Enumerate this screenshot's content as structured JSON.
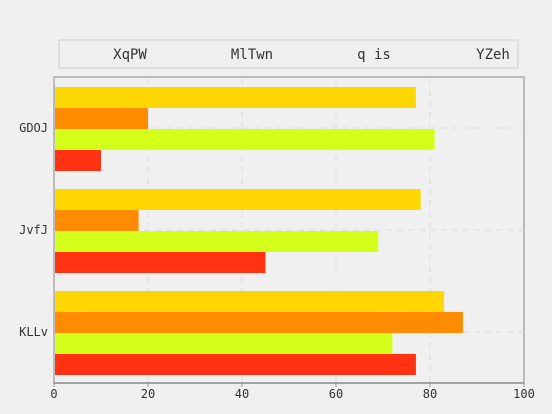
{
  "chart_data": {
    "type": "bar",
    "orientation": "horizontal",
    "categories": [
      "GDOJ",
      "JvfJ",
      "KLLv"
    ],
    "series": [
      {
        "name": "XqPW",
        "color": "#ffd700",
        "values": [
          77,
          78,
          83
        ]
      },
      {
        "name": "MlTwn",
        "color": "#ff8c00",
        "values": [
          20,
          18,
          87
        ]
      },
      {
        "name": "q is",
        "color": "#d4ff1a",
        "values": [
          81,
          69,
          72
        ]
      },
      {
        "name": "YZeh",
        "color": "#ff3311",
        "values": [
          10,
          45,
          77
        ]
      }
    ],
    "xlim": [
      0,
      100
    ],
    "xticks": [
      0,
      20,
      40,
      60,
      80,
      100
    ],
    "grid": true,
    "legend_position": "top"
  }
}
